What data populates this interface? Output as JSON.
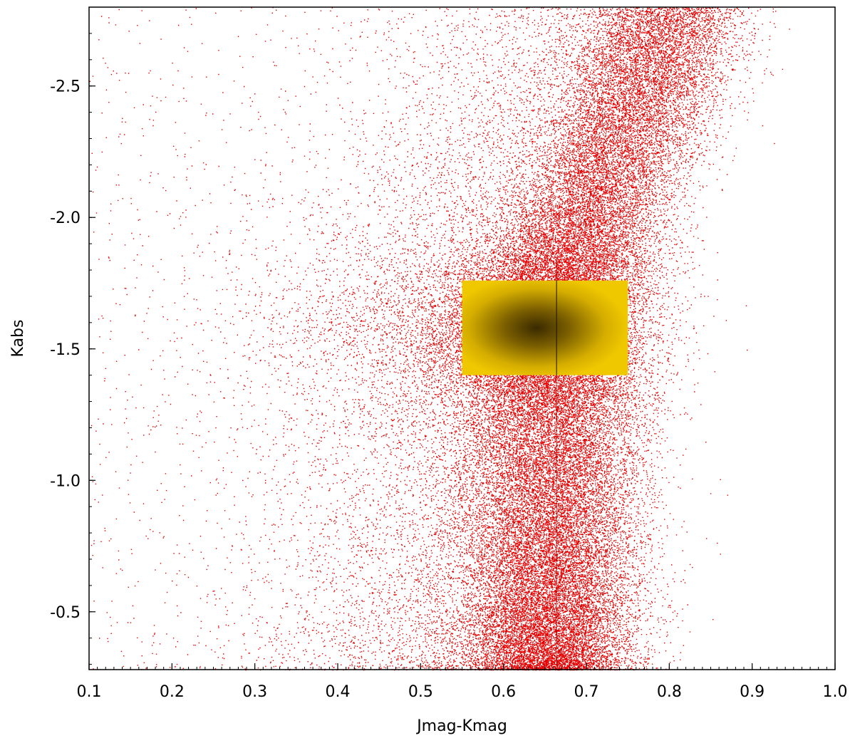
{
  "chart_data": {
    "type": "scatter",
    "title": "",
    "xlabel": "Jmag-Kmag",
    "ylabel": "Kabs",
    "xlim": [
      0.1,
      1.0
    ],
    "ylim": [
      -0.28,
      -2.8
    ],
    "y_inverted": true,
    "grid": false,
    "legend": "none",
    "x_ticks": [
      "0.1",
      "0.2",
      "0.3",
      "0.4",
      "0.5",
      "0.6",
      "0.7",
      "0.8",
      "0.9",
      "1.0"
    ],
    "y_ticks": [
      "-2.5",
      "-2.0",
      "-1.5",
      "-1.0",
      "-0.5"
    ],
    "series": [
      {
        "color": "#e60000",
        "description_points": "dense red point cloud of stars",
        "density_ridge": [
          {
            "kabs": -0.3,
            "jk_center": 0.655,
            "jk_spread": 0.07
          },
          {
            "kabs": -0.8,
            "jk_center": 0.66,
            "jk_spread": 0.075
          },
          {
            "kabs": -1.3,
            "jk_center": 0.66,
            "jk_spread": 0.08
          },
          {
            "kabs": -1.6,
            "jk_center": 0.65,
            "jk_spread": 0.085
          },
          {
            "kabs": -2.0,
            "jk_center": 0.7,
            "jk_spread": 0.07
          },
          {
            "kabs": -2.5,
            "jk_center": 0.77,
            "jk_spread": 0.07
          },
          {
            "kabs": -2.8,
            "jk_center": 0.8,
            "jk_spread": 0.07
          }
        ]
      },
      {
        "color": "#f0c800",
        "selection_box": {
          "x": [
            0.55,
            0.75
          ],
          "y": [
            -1.4,
            -1.76
          ]
        }
      }
    ]
  }
}
